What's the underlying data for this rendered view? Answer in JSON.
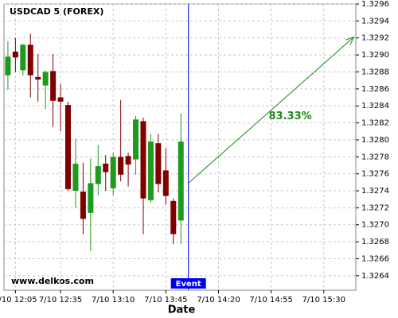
{
  "chart_data": {
    "type": "candlestick",
    "title": "USDCAD 5 (FOREX)",
    "x_label": "Date",
    "watermark": "www.delkos.com",
    "x": [
      720,
      725,
      730,
      735,
      740,
      745,
      750,
      755,
      760,
      765,
      770,
      775,
      780,
      785,
      790,
      795,
      800,
      805,
      810,
      815,
      820,
      825,
      830,
      835
    ],
    "open": [
      1.32876,
      1.32904,
      1.32882,
      1.32912,
      1.32874,
      1.32864,
      1.32881,
      1.3285,
      1.32841,
      1.3274,
      1.32739,
      1.32714,
      1.32748,
      1.32772,
      1.32743,
      1.3278,
      1.32781,
      1.32777,
      1.32822,
      1.32729,
      1.32796,
      1.32764,
      1.32728,
      1.32705
    ],
    "high": [
      1.32916,
      1.3292,
      1.32913,
      1.32925,
      1.32901,
      1.32882,
      1.32901,
      1.32866,
      1.32845,
      1.32801,
      1.32773,
      1.32778,
      1.32794,
      1.32782,
      1.32785,
      1.32847,
      1.32785,
      1.32828,
      1.32826,
      1.32807,
      1.32807,
      1.3279,
      1.32731,
      1.32831
    ],
    "low": [
      1.32859,
      1.3288,
      1.32876,
      1.3285,
      1.32845,
      1.32836,
      1.32815,
      1.3281,
      1.3274,
      1.3272,
      1.32689,
      1.32669,
      1.32735,
      1.3274,
      1.32735,
      1.32751,
      1.32745,
      1.32759,
      1.32689,
      1.32726,
      1.32738,
      1.32724,
      1.32677,
      1.32677
    ],
    "close": [
      1.32898,
      1.32897,
      1.32912,
      1.32876,
      1.32871,
      1.3288,
      1.32846,
      1.32845,
      1.32742,
      1.32772,
      1.32707,
      1.32749,
      1.32769,
      1.32762,
      1.3278,
      1.32759,
      1.32771,
      1.32824,
      1.32731,
      1.32798,
      1.32748,
      1.32734,
      1.32689,
      1.32798
    ],
    "up_color": "#1e9a1e",
    "down_color": "#800000",
    "xlim": [
      717.4,
      951.3
    ],
    "xticks": [
      {
        "value": 725,
        "label": "7/10 12:05"
      },
      {
        "value": 755,
        "label": "7/10 12:35"
      },
      {
        "value": 790,
        "label": "7/10 13:10"
      },
      {
        "value": 825,
        "label": "7/10 13:45"
      },
      {
        "value": 860,
        "label": "7/10 14:20"
      },
      {
        "value": 895,
        "label": "7/10 14:55"
      },
      {
        "value": 930,
        "label": "7/10 15:30"
      }
    ],
    "ylim": [
      1.32623,
      1.3296
    ],
    "yticks": [
      1.3264,
      1.3266,
      1.3268,
      {
        "value": 1.327,
        "label": "1.3270"
      },
      1.3272,
      1.3274,
      1.3276,
      1.3278,
      {
        "value": 1.328,
        "label": "1.3280"
      },
      1.3282,
      1.3284,
      1.3286,
      1.3288,
      {
        "value": 1.329,
        "label": "1.3290"
      },
      1.3292,
      1.3294,
      1.3296
    ],
    "grid": true,
    "event": {
      "x": 840,
      "label": "Event",
      "color": "#0000ee"
    },
    "forecast": {
      "x": [
        840,
        950
      ],
      "y": [
        1.32749,
        1.32921
      ],
      "label": "83.33%",
      "color": "#1a8a1a"
    }
  }
}
